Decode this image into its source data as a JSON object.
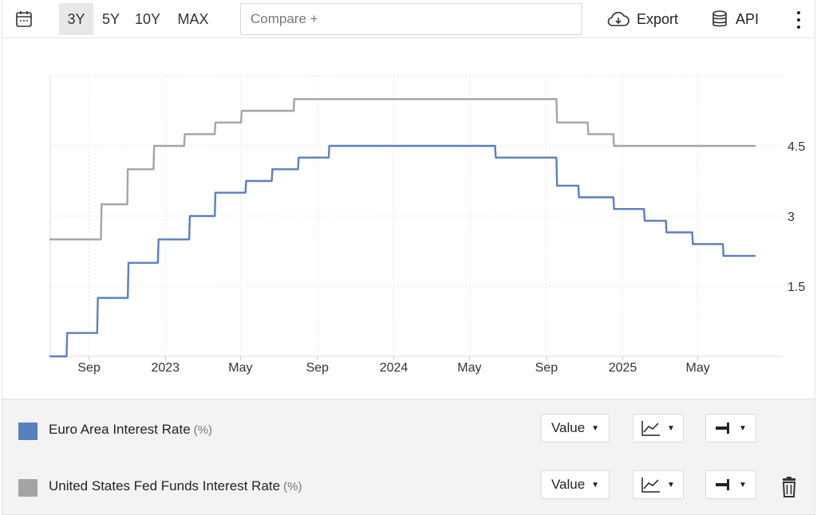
{
  "toolbar": {
    "ranges": [
      "3Y",
      "5Y",
      "10Y",
      "MAX"
    ],
    "active_range": "3Y",
    "compare_placeholder": "Compare +",
    "export_label": "Export",
    "api_label": "API",
    "icons": [
      "calendar-icon",
      "cloud-download-icon",
      "database-icon",
      "more-vertical-icon",
      "line-chart-icon",
      "bar-style-icon",
      "trash-icon"
    ]
  },
  "chart_data": {
    "type": "line",
    "x_tick_labels": [
      "Sep",
      "2023",
      "May",
      "Sep",
      "2024",
      "May",
      "Sep",
      "2025",
      "May"
    ],
    "y_tick_labels": [
      "1.5",
      "3",
      "4.5"
    ],
    "ylim": [
      0,
      6
    ],
    "xlim": [
      "2022-07-01",
      "2025-07-31"
    ],
    "grid": true,
    "y_axis_side": "right",
    "series": [
      {
        "name": "Euro Area Interest Rate",
        "color": "#5a7fbf",
        "x": [
          "2022-07-01",
          "2022-07-27",
          "2022-07-28",
          "2022-09-14",
          "2022-09-15",
          "2022-11-02",
          "2022-11-03",
          "2022-12-20",
          "2022-12-21",
          "2023-02-08",
          "2023-02-09",
          "2023-03-21",
          "2023-03-22",
          "2023-05-09",
          "2023-05-10",
          "2023-06-20",
          "2023-06-21",
          "2023-08-01",
          "2023-08-02",
          "2023-09-19",
          "2023-09-20",
          "2024-06-11",
          "2024-06-12",
          "2024-09-17",
          "2024-09-18",
          "2024-10-22",
          "2024-10-23",
          "2024-12-17",
          "2024-12-18",
          "2025-02-04",
          "2025-02-05",
          "2025-03-11",
          "2025-03-12",
          "2025-04-22",
          "2025-04-23",
          "2025-06-10",
          "2025-06-11",
          "2025-07-31"
        ],
        "values": [
          0.0,
          0.0,
          0.5,
          0.5,
          1.25,
          1.25,
          2.0,
          2.0,
          2.5,
          2.5,
          3.0,
          3.0,
          3.5,
          3.5,
          3.75,
          3.75,
          4.0,
          4.0,
          4.25,
          4.25,
          4.5,
          4.5,
          4.25,
          4.25,
          3.65,
          3.65,
          3.4,
          3.4,
          3.15,
          3.15,
          2.9,
          2.9,
          2.65,
          2.65,
          2.4,
          2.4,
          2.15,
          2.15
        ]
      },
      {
        "name": "United States Fed Funds Interest Rate",
        "color": "#a4a4a4",
        "x": [
          "2022-07-01",
          "2022-07-26",
          "2022-07-27",
          "2022-09-20",
          "2022-09-21",
          "2022-11-01",
          "2022-11-02",
          "2022-12-13",
          "2022-12-14",
          "2023-01-31",
          "2023-02-01",
          "2023-03-21",
          "2023-03-22",
          "2023-05-02",
          "2023-05-03",
          "2023-07-25",
          "2023-07-26",
          "2024-09-17",
          "2024-09-18",
          "2024-11-06",
          "2024-11-07",
          "2024-12-17",
          "2024-12-18",
          "2025-07-31"
        ],
        "values": [
          2.5,
          2.5,
          2.5,
          2.5,
          3.25,
          3.25,
          4.0,
          4.0,
          4.5,
          4.5,
          4.75,
          4.75,
          5.0,
          5.0,
          5.25,
          5.25,
          5.5,
          5.5,
          5.0,
          5.0,
          4.75,
          4.75,
          4.5,
          4.5
        ]
      }
    ]
  },
  "legend": [
    {
      "label": "Euro Area Interest Rate",
      "unit": "(%)",
      "color": "#5a7fbf",
      "value_btn": "Value",
      "deletable": false
    },
    {
      "label": "United States Fed Funds Interest Rate",
      "unit": "(%)",
      "color": "#a4a4a4",
      "value_btn": "Value",
      "deletable": true
    }
  ]
}
